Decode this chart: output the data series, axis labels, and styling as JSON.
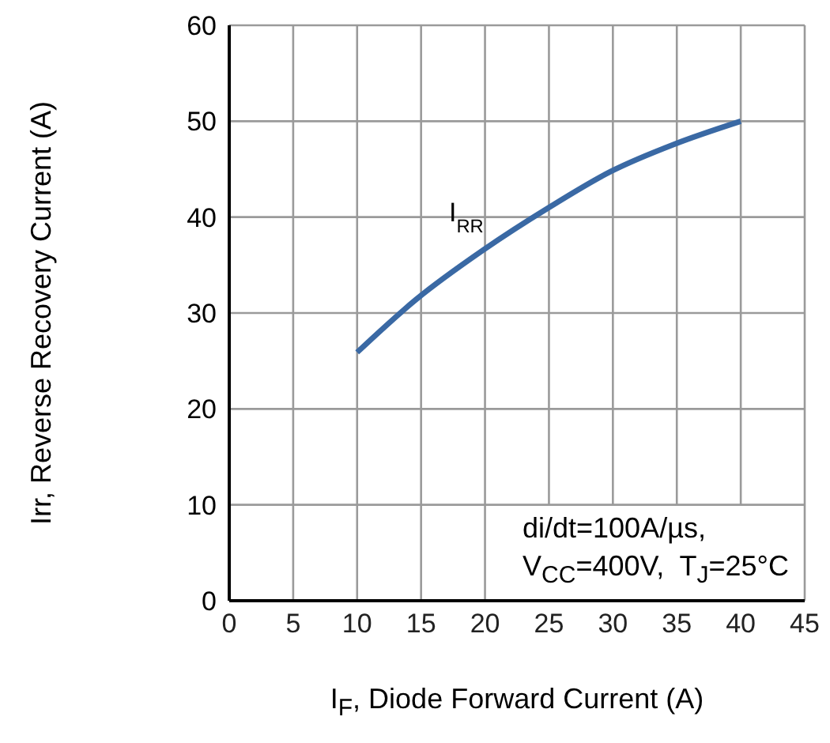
{
  "chart_data": {
    "type": "line",
    "xlabel": "I$_{F}$, Diode Forward Current (A)",
    "ylabel": "Irr, Reverse Recovery Current (A)",
    "x": [
      10,
      14.6,
      19.9,
      25,
      29.9,
      34.8,
      40
    ],
    "series": [
      {
        "name": "I$_{RR}$",
        "color": "#3a69a4",
        "values": [
          25.9,
          31.4,
          36.6,
          41,
          44.8,
          47.6,
          50
        ]
      }
    ],
    "xlim": [
      0,
      45
    ],
    "xticks": [
      0,
      5,
      10,
      15,
      20,
      25,
      30,
      35,
      40,
      45
    ],
    "ylim": [
      0,
      60
    ],
    "yticks": [
      0,
      10,
      20,
      30,
      40,
      50,
      60
    ],
    "grid": true,
    "marker": "none",
    "line_style": "solid",
    "annotations": [
      "di/dt=100A/µs,",
      "V$_{CC}$=400V,  T$_{J}$=25°C"
    ]
  }
}
